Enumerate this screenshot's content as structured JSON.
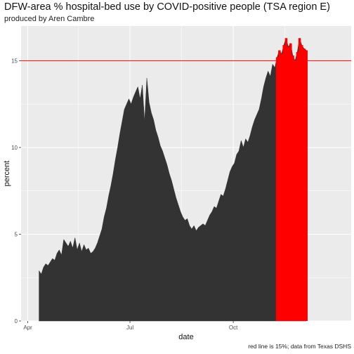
{
  "header": {
    "title": "DFW-area % hospital-bed use by COVID-positive people (TSA region E)",
    "subtitle": "produced by Aren Cambre"
  },
  "caption": "red line is 15%; data from Texas DSHS",
  "chart_data": {
    "type": "area",
    "title": "DFW-area % hospital-bed use by COVID-positive people (TSA region E)",
    "subtitle": "produced by Aren Cambre",
    "xlabel": "date",
    "ylabel": "percent",
    "x_ticks": [
      {
        "date": "2020-04-01",
        "label": "Apr"
      },
      {
        "date": "2020-07-01",
        "label": "Jul"
      },
      {
        "date": "2020-10-01",
        "label": "Oct"
      }
    ],
    "y_ticks": [
      0,
      5,
      10,
      15
    ],
    "ylim": [
      0,
      17
    ],
    "xlim": [
      "2020-03-26",
      "2021-01-14"
    ],
    "grid": true,
    "reference_line": {
      "value": 15,
      "color": "#ff0000"
    },
    "colors": {
      "area": "#333333",
      "above_threshold": "#ff0000",
      "panel": "#ebebeb",
      "grid": "#ffffff"
    },
    "series": [
      {
        "points": [
          [
            "2020-04-11",
            2.9
          ],
          [
            "2020-04-13",
            2.7
          ],
          [
            "2020-04-15",
            3.1
          ],
          [
            "2020-04-17",
            3.3
          ],
          [
            "2020-04-19",
            3.2
          ],
          [
            "2020-04-21",
            3.4
          ],
          [
            "2020-04-23",
            3.6
          ],
          [
            "2020-04-25",
            3.5
          ],
          [
            "2020-04-27",
            3.9
          ],
          [
            "2020-04-29",
            4.1
          ],
          [
            "2020-05-01",
            3.8
          ],
          [
            "2020-05-03",
            4.7
          ],
          [
            "2020-05-05",
            4.5
          ],
          [
            "2020-05-07",
            4.3
          ],
          [
            "2020-05-09",
            4.6
          ],
          [
            "2020-05-11",
            4.2
          ],
          [
            "2020-05-13",
            4.8
          ],
          [
            "2020-05-15",
            4.1
          ],
          [
            "2020-05-17",
            4.5
          ],
          [
            "2020-05-19",
            4.0
          ],
          [
            "2020-05-21",
            4.4
          ],
          [
            "2020-05-23",
            4.1
          ],
          [
            "2020-05-25",
            4.2
          ],
          [
            "2020-05-27",
            3.9
          ],
          [
            "2020-05-29",
            4.0
          ],
          [
            "2020-05-31",
            4.2
          ],
          [
            "2020-06-02",
            4.5
          ],
          [
            "2020-06-04",
            4.9
          ],
          [
            "2020-06-06",
            5.3
          ],
          [
            "2020-06-08",
            6.0
          ],
          [
            "2020-06-10",
            6.5
          ],
          [
            "2020-06-12",
            7.2
          ],
          [
            "2020-06-14",
            7.8
          ],
          [
            "2020-06-16",
            8.5
          ],
          [
            "2020-06-18",
            9.3
          ],
          [
            "2020-06-20",
            10.0
          ],
          [
            "2020-06-22",
            10.8
          ],
          [
            "2020-06-24",
            11.5
          ],
          [
            "2020-06-26",
            12.2
          ],
          [
            "2020-06-28",
            12.5
          ],
          [
            "2020-06-30",
            12.8
          ],
          [
            "2020-07-02",
            12.5
          ],
          [
            "2020-07-04",
            12.9
          ],
          [
            "2020-07-06",
            13.2
          ],
          [
            "2020-07-08",
            13.5
          ],
          [
            "2020-07-10",
            12.8
          ],
          [
            "2020-07-12",
            13.6
          ],
          [
            "2020-07-14",
            11.5
          ],
          [
            "2020-07-16",
            14.0
          ],
          [
            "2020-07-18",
            12.6
          ],
          [
            "2020-07-20",
            12.0
          ],
          [
            "2020-07-22",
            11.6
          ],
          [
            "2020-07-24",
            11.0
          ],
          [
            "2020-07-26",
            10.6
          ],
          [
            "2020-07-28",
            10.1
          ],
          [
            "2020-07-30",
            9.8
          ],
          [
            "2020-08-01",
            9.4
          ],
          [
            "2020-08-03",
            9.0
          ],
          [
            "2020-08-05",
            8.5
          ],
          [
            "2020-08-07",
            8.1
          ],
          [
            "2020-08-09",
            7.6
          ],
          [
            "2020-08-11",
            7.1
          ],
          [
            "2020-08-13",
            6.7
          ],
          [
            "2020-08-15",
            6.3
          ],
          [
            "2020-08-17",
            6.0
          ],
          [
            "2020-08-19",
            5.8
          ],
          [
            "2020-08-21",
            5.9
          ],
          [
            "2020-08-23",
            5.5
          ],
          [
            "2020-08-25",
            5.3
          ],
          [
            "2020-08-27",
            5.5
          ],
          [
            "2020-08-29",
            5.2
          ],
          [
            "2020-08-31",
            5.4
          ],
          [
            "2020-09-02",
            5.5
          ],
          [
            "2020-09-04",
            5.6
          ],
          [
            "2020-09-06",
            5.5
          ],
          [
            "2020-09-08",
            5.8
          ],
          [
            "2020-09-10",
            6.1
          ],
          [
            "2020-09-12",
            6.3
          ],
          [
            "2020-09-14",
            6.6
          ],
          [
            "2020-09-16",
            6.5
          ],
          [
            "2020-09-18",
            6.9
          ],
          [
            "2020-09-20",
            7.3
          ],
          [
            "2020-09-22",
            7.2
          ],
          [
            "2020-09-24",
            7.6
          ],
          [
            "2020-09-26",
            8.1
          ],
          [
            "2020-09-28",
            8.6
          ],
          [
            "2020-09-30",
            8.9
          ],
          [
            "2020-10-02",
            9.1
          ],
          [
            "2020-10-04",
            9.6
          ],
          [
            "2020-10-06",
            9.8
          ],
          [
            "2020-10-08",
            10.4
          ],
          [
            "2020-10-10",
            10.0
          ],
          [
            "2020-10-12",
            10.5
          ],
          [
            "2020-10-14",
            10.3
          ],
          [
            "2020-10-16",
            10.7
          ],
          [
            "2020-10-18",
            11.2
          ],
          [
            "2020-10-20",
            11.6
          ],
          [
            "2020-10-22",
            11.9
          ],
          [
            "2020-10-24",
            12.2
          ],
          [
            "2020-10-26",
            12.8
          ],
          [
            "2020-10-28",
            13.5
          ],
          [
            "2020-10-30",
            14.0
          ],
          [
            "2020-11-01",
            14.4
          ],
          [
            "2020-11-03",
            14.1
          ],
          [
            "2020-11-05",
            14.8
          ],
          [
            "2020-11-07",
            14.6
          ],
          [
            "2020-11-09",
            15.2
          ],
          [
            "2020-11-11",
            15.6
          ],
          [
            "2020-11-13",
            15.4
          ],
          [
            "2020-11-15",
            15.9
          ],
          [
            "2020-11-17",
            16.3
          ],
          [
            "2020-11-19",
            15.8
          ],
          [
            "2020-11-21",
            16.0
          ],
          [
            "2020-11-23",
            15.3
          ],
          [
            "2020-11-25",
            15.0
          ],
          [
            "2020-11-27",
            15.5
          ],
          [
            "2020-11-29",
            16.3
          ],
          [
            "2020-12-01",
            15.9
          ],
          [
            "2020-12-03",
            15.7
          ],
          [
            "2020-12-05",
            15.6
          ]
        ]
      }
    ]
  }
}
